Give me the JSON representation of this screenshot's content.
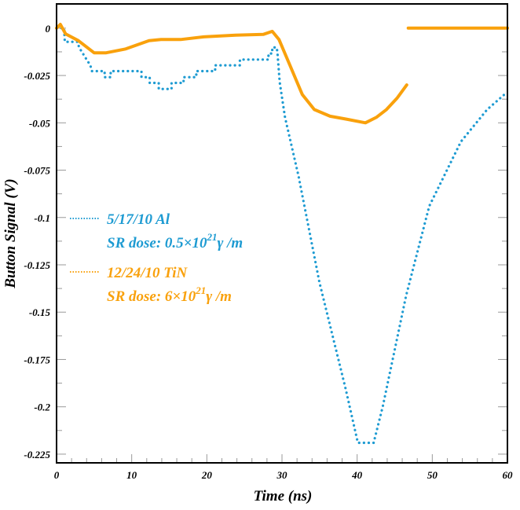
{
  "chart_data": {
    "type": "line",
    "title": "",
    "xlabel": "Time (ns)",
    "ylabel": "Button Signal (V)",
    "xlim": [
      0,
      60
    ],
    "ylim": [
      -0.2296,
      0.0128
    ],
    "grid": false,
    "legend_placement": "left-middle",
    "xticks": [
      "0",
      "10",
      "20",
      "30",
      "40",
      "50",
      "60"
    ],
    "xtick_values": [
      0,
      10,
      20,
      30,
      40,
      50,
      60
    ],
    "yticks": [
      "0",
      "-0.025",
      "-0.05",
      "-0.075",
      "-0.1",
      "-0.125",
      "-0.15",
      "-0.175",
      "-0.2",
      "-0.225"
    ],
    "ytick_values": [
      0,
      -0.025,
      -0.05,
      -0.075,
      -0.1,
      -0.125,
      -0.15,
      -0.175,
      -0.2,
      -0.225
    ],
    "series": [
      {
        "name": "5/17/10 Al",
        "legend_line2": "SR dose: 0.5×10",
        "legend_sup": "21",
        "legend_tail": "γ /m",
        "color": "#1e9bd2",
        "style": "dotted",
        "x": [
          0,
          1.0,
          1.1,
          2.8,
          3.0,
          3.5,
          4.0,
          4.5,
          4.7,
          6.4,
          6.4,
          7.2,
          7.2,
          11.3,
          11.3,
          12.4,
          12.4,
          13.6,
          13.6,
          15.3,
          15.3,
          16.9,
          16.9,
          18.6,
          18.6,
          21.1,
          21.1,
          24.4,
          24.4,
          28.2,
          28.2,
          28.7,
          28.7,
          29.3,
          29.4,
          29.7,
          30.4,
          32.2,
          35.0,
          38.5,
          40.1,
          42.2,
          43.4,
          46.5,
          49.6,
          53.8,
          57.3,
          59.6,
          60
        ],
        "y": [
          0,
          0,
          -0.0072,
          -0.0072,
          -0.0102,
          -0.0134,
          -0.0166,
          -0.0196,
          -0.0227,
          -0.0227,
          -0.0259,
          -0.0259,
          -0.0227,
          -0.0227,
          -0.0259,
          -0.0259,
          -0.0289,
          -0.0289,
          -0.0321,
          -0.0321,
          -0.0289,
          -0.0289,
          -0.0259,
          -0.0259,
          -0.0227,
          -0.0227,
          -0.0196,
          -0.0196,
          -0.0166,
          -0.0166,
          -0.0134,
          -0.0134,
          -0.0102,
          -0.0102,
          -0.0134,
          -0.0286,
          -0.047,
          -0.078,
          -0.1345,
          -0.191,
          -0.219,
          -0.219,
          -0.2,
          -0.1415,
          -0.094,
          -0.06,
          -0.043,
          -0.035,
          -0.035
        ]
      },
      {
        "name": "12/24/10 TiN",
        "legend_line2": "SR dose: 6×10",
        "legend_sup": "21",
        "legend_tail": "γ /m",
        "color": "#f9a10c",
        "style": "solid",
        "segments": [
          {
            "x": [
              0,
              0.5,
              1.2,
              2.9,
              5.0,
              6.6,
              9.2,
              12.3,
              13.9,
              16.5,
              19.6,
              23.8,
              27.5,
              28.7,
              29.6,
              31.1,
              32.7,
              34.3,
              36.4,
              38.5,
              41.1,
              42.6,
              43.9,
              45.3,
              46.6
            ],
            "y": [
              0,
              0.002,
              -0.003,
              -0.0066,
              -0.013,
              -0.013,
              -0.011,
              -0.0066,
              -0.006,
              -0.006,
              -0.0046,
              -0.0037,
              -0.0033,
              -0.0017,
              -0.006,
              -0.02,
              -0.035,
              -0.043,
              -0.0465,
              -0.048,
              -0.05,
              -0.047,
              -0.043,
              -0.037,
              -0.03
            ]
          },
          {
            "x": [
              46.8,
              60
            ],
            "y": [
              0,
              0
            ]
          }
        ]
      }
    ]
  }
}
